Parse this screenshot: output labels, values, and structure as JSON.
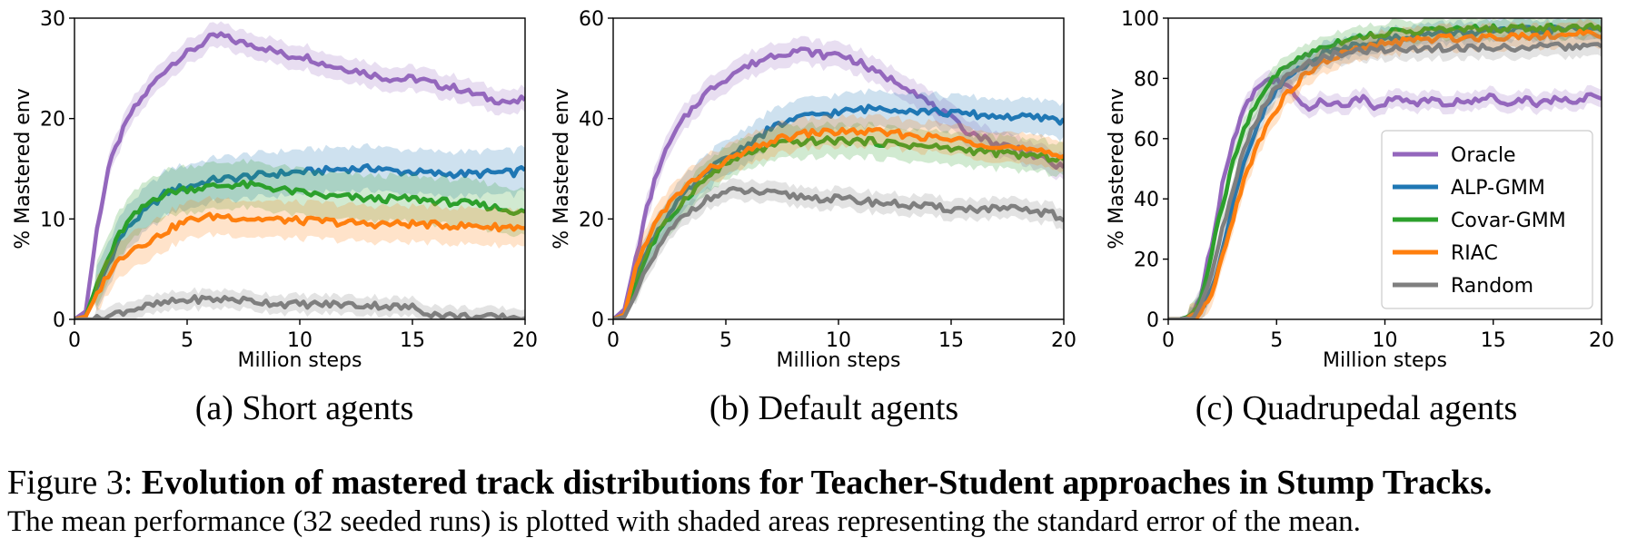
{
  "chart_data": [
    {
      "type": "line",
      "xlabel": "Million steps",
      "ylabel": "% Mastered env",
      "xlim": [
        0,
        20
      ],
      "ylim": [
        0,
        30
      ],
      "xticks": [
        "0",
        "5",
        "10",
        "15",
        "20"
      ],
      "yticks": [
        "0",
        "10",
        "20",
        "30"
      ],
      "x": [
        0,
        0.5,
        1,
        1.5,
        2,
        2.5,
        3,
        3.5,
        4,
        4.5,
        5,
        5.5,
        6,
        6.5,
        7,
        7.5,
        8,
        8.5,
        9,
        9.5,
        10,
        10.5,
        11,
        11.5,
        12,
        12.5,
        13,
        13.5,
        14,
        14.5,
        15,
        15.5,
        16,
        16.5,
        17,
        17.5,
        18,
        18.5,
        19,
        19.5,
        20
      ],
      "series": [
        {
          "name": "Oracle",
          "color": "#9467bd",
          "err": 1.2,
          "values": [
            0,
            0.8,
            9,
            15,
            18,
            20.5,
            22,
            23.5,
            24.8,
            25.8,
            26.5,
            27.2,
            28,
            28.3,
            27.8,
            27.5,
            27.3,
            27,
            26.6,
            26.2,
            26.3,
            26,
            25.5,
            25.2,
            25,
            24.8,
            24.5,
            24.2,
            24,
            23.9,
            24,
            23.8,
            23.4,
            23.2,
            23,
            22.6,
            22.3,
            21.9,
            21.8,
            21.5,
            22
          ]
        },
        {
          "name": "ALP-GMM",
          "color": "#1f77b4",
          "err": 2.2,
          "values": [
            0,
            0.3,
            3,
            5.5,
            8,
            9.5,
            10.5,
            11.5,
            12.5,
            13,
            13.2,
            13.5,
            13.8,
            14,
            14,
            14.2,
            14.3,
            14.4,
            14.5,
            14.6,
            14.7,
            14.7,
            14.8,
            14.9,
            15,
            15,
            15,
            15.1,
            14.8,
            14.7,
            14.7,
            14.6,
            14.5,
            14.5,
            14.5,
            14.5,
            14.5,
            14.6,
            14.6,
            14.6,
            15
          ]
        },
        {
          "name": "Covar-GMM",
          "color": "#2ca02c",
          "err": 2.3,
          "values": [
            0,
            0.3,
            3.5,
            6,
            8.5,
            10,
            11,
            12,
            12.5,
            12.8,
            13,
            13.1,
            13.2,
            13.3,
            13.4,
            13.4,
            13.3,
            13.2,
            13,
            12.8,
            12.6,
            12.5,
            12.3,
            12.2,
            12.2,
            12.1,
            12,
            12,
            12,
            12,
            12,
            11.9,
            11.8,
            11.7,
            11.6,
            11.5,
            11.4,
            11.2,
            11,
            10.8,
            10.6
          ]
        },
        {
          "name": "RIAC",
          "color": "#ff7f0e",
          "err": 1.8,
          "values": [
            0,
            0.3,
            2.5,
            4.5,
            6,
            7,
            7.5,
            8,
            8.7,
            9.3,
            9.8,
            10.1,
            10.2,
            10.3,
            10.2,
            10.1,
            10,
            10,
            9.9,
            9.9,
            9.8,
            9.8,
            9.8,
            9.7,
            9.6,
            9.6,
            9.5,
            9.5,
            9.5,
            9.5,
            9.5,
            9.5,
            9.4,
            9.4,
            9.3,
            9.3,
            9.3,
            9.2,
            9.2,
            9.2,
            9.2
          ]
        },
        {
          "name": "Random",
          "color": "#7f7f7f",
          "err": 0.9,
          "values": [
            0,
            0,
            0,
            0.3,
            0.7,
            1,
            1.2,
            1.4,
            1.6,
            1.8,
            1.9,
            2,
            2,
            2,
            2,
            1.9,
            1.8,
            1.7,
            1.6,
            1.5,
            1.5,
            1.5,
            1.5,
            1.5,
            1.5,
            1.4,
            1.4,
            1.4,
            1.3,
            1.2,
            1.2,
            0.8,
            0.5,
            0.4,
            0.3,
            0.3,
            0.2,
            0.2,
            0.2,
            0.2,
            0.2
          ]
        }
      ]
    },
    {
      "type": "line",
      "xlabel": "Million steps",
      "ylabel": "% Mastered env",
      "xlim": [
        0,
        20
      ],
      "ylim": [
        0,
        60
      ],
      "xticks": [
        "0",
        "5",
        "10",
        "15",
        "20"
      ],
      "yticks": [
        "0",
        "20",
        "40",
        "60"
      ],
      "x": [
        0,
        0.5,
        1,
        1.5,
        2,
        2.5,
        3,
        3.5,
        4,
        4.5,
        5,
        5.5,
        6,
        6.5,
        7,
        7.5,
        8,
        8.5,
        9,
        9.5,
        10,
        10.5,
        11,
        11.5,
        12,
        12.5,
        13,
        13.5,
        14,
        14.5,
        15,
        15.5,
        16,
        16.5,
        17,
        17.5,
        18,
        18.5,
        19,
        19.5,
        20
      ],
      "series": [
        {
          "name": "Oracle",
          "color": "#9467bd",
          "err": 2.5,
          "values": [
            0,
            2,
            12,
            22,
            30,
            35,
            39,
            42,
            44.5,
            46.5,
            48,
            49.5,
            50.5,
            51.5,
            52.5,
            53,
            53.5,
            53.5,
            53,
            52.5,
            53,
            52,
            51,
            49.5,
            48.5,
            47.5,
            46.5,
            45,
            43,
            41.5,
            40,
            38,
            37,
            36,
            35,
            34.5,
            34,
            33,
            32,
            31,
            30
          ]
        },
        {
          "name": "ALP-GMM",
          "color": "#1f77b4",
          "err": 3.5,
          "values": [
            0,
            1,
            8,
            14,
            18,
            21,
            24,
            26.5,
            28.5,
            30.5,
            32,
            33.5,
            35,
            36.5,
            38,
            39,
            39.8,
            40.3,
            40.8,
            41,
            41.2,
            41.5,
            41.8,
            42,
            42.1,
            42,
            41.8,
            41.5,
            41.5,
            41.3,
            41,
            41,
            40.8,
            40.6,
            40.5,
            40.4,
            40.3,
            40.2,
            40.1,
            40,
            39.5
          ]
        },
        {
          "name": "Covar-GMM",
          "color": "#2ca02c",
          "err": 3.2,
          "values": [
            0,
            1,
            7,
            13,
            17,
            20,
            23,
            25.5,
            27.5,
            29.5,
            31,
            32,
            33,
            33.8,
            34.5,
            35,
            35.2,
            35.4,
            35.5,
            35.6,
            35.6,
            35.6,
            35.5,
            35.4,
            35.2,
            35,
            34.8,
            34.6,
            34.4,
            34.2,
            34,
            33.8,
            33.6,
            33.4,
            33.2,
            33,
            32.8,
            32.6,
            32.4,
            32.2,
            32
          ]
        },
        {
          "name": "RIAC",
          "color": "#ff7f0e",
          "err": 3.0,
          "values": [
            0,
            1,
            10,
            16,
            20,
            23,
            25.5,
            27.5,
            29,
            30.5,
            31.5,
            32.5,
            33.5,
            34.5,
            35.5,
            36,
            36.5,
            37,
            37.2,
            37.3,
            37.4,
            37.4,
            37.4,
            37.3,
            37.2,
            37,
            36.8,
            36.5,
            36.3,
            36,
            35.8,
            35.6,
            35.3,
            35,
            34.7,
            34.4,
            34,
            33.6,
            33.2,
            32.8,
            32.5
          ]
        },
        {
          "name": "Random",
          "color": "#7f7f7f",
          "err": 2.0,
          "values": [
            0,
            0.5,
            5,
            10,
            14,
            17.5,
            20,
            22,
            23.5,
            24.5,
            25.3,
            25.6,
            25.5,
            25.3,
            25,
            24.8,
            24.6,
            24.4,
            24.2,
            24,
            24,
            23.8,
            23.6,
            23.4,
            23.2,
            23,
            22.8,
            22.6,
            22.4,
            22.2,
            22,
            22,
            22,
            22,
            22,
            22,
            21.8,
            21.6,
            21.3,
            21,
            19.5
          ]
        }
      ]
    },
    {
      "type": "line",
      "xlabel": "Million steps",
      "ylabel": "% Mastered env",
      "xlim": [
        0,
        20
      ],
      "ylim": [
        0,
        100
      ],
      "xticks": [
        "0",
        "5",
        "10",
        "15",
        "20"
      ],
      "yticks": [
        "0",
        "20",
        "40",
        "60",
        "80",
        "100"
      ],
      "legend": "center-right",
      "x": [
        0,
        0.5,
        1,
        1.5,
        2,
        2.5,
        3,
        3.5,
        4,
        4.5,
        5,
        5.5,
        6,
        6.5,
        7,
        7.5,
        8,
        8.5,
        9,
        9.5,
        10,
        10.5,
        11,
        11.5,
        12,
        12.5,
        13,
        13.5,
        14,
        14.5,
        15,
        15.5,
        16,
        16.5,
        17,
        17.5,
        18,
        18.5,
        19,
        19.5,
        20
      ],
      "series": [
        {
          "name": "Oracle",
          "color": "#9467bd",
          "err": 3.0,
          "values": [
            0,
            0,
            1,
            8,
            25,
            45,
            60,
            70,
            76,
            79,
            80,
            78,
            72,
            70,
            73,
            72,
            71,
            72,
            74,
            71,
            72,
            73,
            73,
            72,
            73,
            72,
            71,
            73,
            72,
            73,
            74,
            72,
            73,
            73,
            72,
            73,
            73,
            72,
            73,
            74,
            73
          ]
        },
        {
          "name": "ALP-GMM",
          "color": "#1f77b4",
          "err": 3.5,
          "values": [
            0,
            0,
            0.5,
            3,
            10,
            22,
            38,
            52,
            62,
            70,
            76,
            80,
            83,
            85.5,
            87.5,
            89,
            90,
            91,
            91.8,
            92.5,
            93,
            93.5,
            94,
            94.3,
            94.6,
            94.8,
            95,
            95.2,
            95.4,
            95.5,
            95.6,
            95.7,
            95.8,
            95.9,
            96,
            96.1,
            96.2,
            96.3,
            96.4,
            96.5,
            96.8
          ]
        },
        {
          "name": "Covar-GMM",
          "color": "#2ca02c",
          "err": 3.5,
          "values": [
            0,
            0,
            1,
            6,
            22,
            38,
            52,
            63,
            71,
            77,
            81,
            84,
            86.5,
            88.5,
            90,
            91.5,
            92.5,
            93.3,
            94,
            94.5,
            95,
            95.3,
            95.6,
            95.8,
            96,
            96.1,
            96.2,
            96.3,
            96.4,
            96.5,
            96.6,
            96.6,
            96.7,
            96.7,
            96.8,
            96.8,
            96.9,
            96.9,
            97,
            97,
            97
          ]
        },
        {
          "name": "RIAC",
          "color": "#ff7f0e",
          "err": 4.0,
          "values": [
            0,
            0,
            0.3,
            2,
            8,
            20,
            34,
            46,
            56,
            64,
            70,
            75,
            79,
            82,
            84.5,
            86.5,
            88,
            89,
            90,
            90.8,
            91.5,
            92,
            92.5,
            92.8,
            93,
            93.2,
            93.4,
            93.5,
            93.7,
            93.8,
            93.9,
            94,
            94.1,
            94.2,
            94.3,
            94.4,
            94.5,
            94.5,
            94.6,
            94.6,
            94.7
          ]
        },
        {
          "name": "Random",
          "color": "#7f7f7f",
          "err": 3.5,
          "values": [
            0,
            0,
            0.5,
            4,
            15,
            30,
            44,
            56,
            65,
            72,
            77,
            80.5,
            83,
            85,
            86.5,
            87.5,
            88.3,
            88.8,
            89.2,
            89.5,
            89.7,
            89.8,
            89.9,
            90,
            90,
            90.1,
            90.1,
            90.2,
            90.2,
            90.2,
            90.3,
            90.3,
            90.3,
            90.4,
            90.4,
            90.4,
            90.5,
            90.5,
            90.5,
            90.6,
            90.6
          ]
        }
      ]
    }
  ],
  "legend": [
    "Oracle",
    "ALP-GMM",
    "Covar-GMM",
    "RIAC",
    "Random"
  ],
  "subcaptions": [
    "(a) Short agents",
    "(b) Default agents",
    "(c) Quadrupedal agents"
  ],
  "caption": {
    "prefix": "Figure 3: ",
    "bold": "Evolution of mastered track distributions for Teacher-Student approaches in Stump Tracks.",
    "line2": "The mean performance (32 seeded runs) is plotted with shaded areas representing the standard error of the mean."
  }
}
